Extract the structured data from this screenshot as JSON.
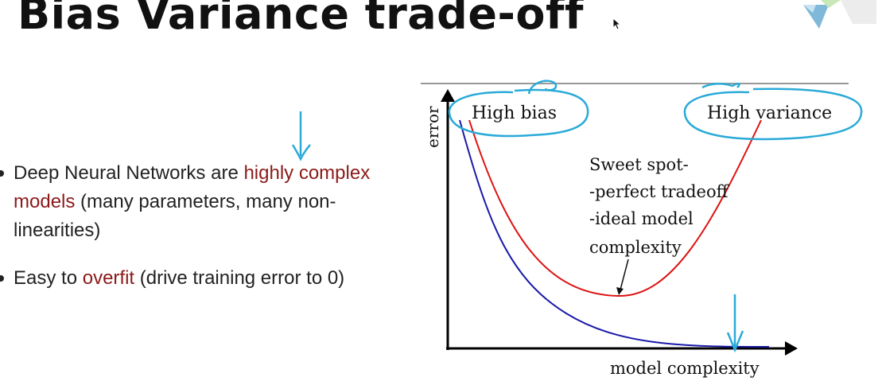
{
  "slide": {
    "title": "Bias Variance trade-off",
    "bullets": [
      {
        "segments": [
          {
            "text": "Deep Neural Networks are ",
            "highlight": false
          },
          {
            "text": "highly complex models",
            "highlight": true
          },
          {
            "text": " (many parameters, many non-linearities)",
            "highlight": false
          }
        ]
      },
      {
        "segments": [
          {
            "text": "Easy to ",
            "highlight": false
          },
          {
            "text": "overfit",
            "highlight": true
          },
          {
            "text": " (drive training error to 0)",
            "highlight": false
          }
        ]
      }
    ]
  },
  "figure": {
    "ylabel": "error",
    "xlabel": "model complexity",
    "labels": {
      "high_bias": "High bias",
      "high_variance": "High variance",
      "sweet_spot_lines": [
        "Sweet spot-",
        "-perfect tradeoff",
        "-ideal model",
        "complexity"
      ]
    }
  },
  "colors": {
    "highlight_text": "#8b1a1a",
    "curve_test": "#dd1111",
    "curve_train": "#1a1aaa",
    "annotation": "#2aaad8"
  },
  "icons": [
    "mouse-cursor-icon",
    "corner-logo-icon"
  ]
}
